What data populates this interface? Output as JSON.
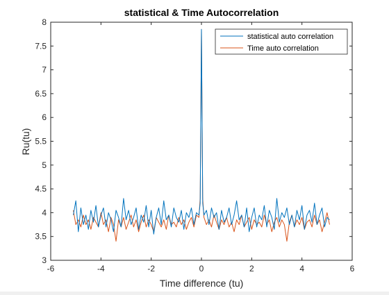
{
  "chart_data": {
    "type": "line",
    "title": "statistical & Time Autocorrelation",
    "xlabel": "Time difference (tu)",
    "ylabel": "Ru(tu)",
    "xlim": [
      -6,
      6
    ],
    "ylim": [
      3,
      8
    ],
    "xticks": [
      "-6",
      "-4",
      "-2",
      "0",
      "2",
      "4",
      "6"
    ],
    "yticks": [
      "3",
      "3.5",
      "4",
      "4.5",
      "5",
      "5.5",
      "6",
      "6.5",
      "7",
      "7.5",
      "8"
    ],
    "grid": false,
    "legend_position": "top-right",
    "series": [
      {
        "name": "statistical auto correlation",
        "color": "#0072bd",
        "x": [
          -5.1,
          -5.0,
          -4.9,
          -4.8,
          -4.7,
          -4.6,
          -4.5,
          -4.4,
          -4.3,
          -4.2,
          -4.1,
          -4.0,
          -3.9,
          -3.8,
          -3.7,
          -3.6,
          -3.5,
          -3.4,
          -3.3,
          -3.2,
          -3.1,
          -3.0,
          -2.9,
          -2.8,
          -2.7,
          -2.6,
          -2.5,
          -2.4,
          -2.3,
          -2.2,
          -2.1,
          -2.0,
          -1.9,
          -1.8,
          -1.7,
          -1.6,
          -1.5,
          -1.4,
          -1.3,
          -1.2,
          -1.1,
          -1.0,
          -0.9,
          -0.8,
          -0.7,
          -0.6,
          -0.5,
          -0.4,
          -0.3,
          -0.2,
          -0.1,
          -0.05,
          0.0,
          0.05,
          0.1,
          0.2,
          0.3,
          0.4,
          0.5,
          0.6,
          0.7,
          0.8,
          0.9,
          1.0,
          1.1,
          1.2,
          1.3,
          1.4,
          1.5,
          1.6,
          1.7,
          1.8,
          1.9,
          2.0,
          2.1,
          2.2,
          2.3,
          2.4,
          2.5,
          2.6,
          2.7,
          2.8,
          2.9,
          3.0,
          3.1,
          3.2,
          3.3,
          3.4,
          3.5,
          3.6,
          3.7,
          3.8,
          3.9,
          4.0,
          4.1,
          4.2,
          4.3,
          4.4,
          4.5,
          4.6,
          4.7,
          4.8,
          4.9,
          5.0,
          5.1
        ],
        "y": [
          3.95,
          4.25,
          3.6,
          4.1,
          3.75,
          3.95,
          3.65,
          4.05,
          3.8,
          4.15,
          3.7,
          3.95,
          4.1,
          3.7,
          4.0,
          3.85,
          3.6,
          4.05,
          3.9,
          3.7,
          4.3,
          3.85,
          4.05,
          3.75,
          3.9,
          4.1,
          3.65,
          3.95,
          3.8,
          4.15,
          3.7,
          4.05,
          3.55,
          3.9,
          4.1,
          3.75,
          4.25,
          3.85,
          3.95,
          3.7,
          4.1,
          3.9,
          3.8,
          4.05,
          3.65,
          4.0,
          3.9,
          4.1,
          3.75,
          4.0,
          3.95,
          4.2,
          7.85,
          4.2,
          3.95,
          4.05,
          3.75,
          4.1,
          3.9,
          4.0,
          3.65,
          4.05,
          3.8,
          3.9,
          4.1,
          3.75,
          3.95,
          4.25,
          3.85,
          3.95,
          3.7,
          4.1,
          3.6,
          3.9,
          4.1,
          3.7,
          3.95,
          3.85,
          4.15,
          3.7,
          4.05,
          3.9,
          3.65,
          4.3,
          3.8,
          4.0,
          3.9,
          4.1,
          3.75,
          3.95,
          3.7,
          4.05,
          3.85,
          4.15,
          3.65,
          3.95,
          4.05,
          3.8,
          4.2,
          3.75,
          3.95,
          4.1,
          3.7,
          3.9,
          3.85
        ]
      },
      {
        "name": "Time auto correlation",
        "color": "#d95319",
        "x": [
          -5.1,
          -5.0,
          -4.9,
          -4.8,
          -4.7,
          -4.6,
          -4.5,
          -4.4,
          -4.3,
          -4.2,
          -4.1,
          -4.0,
          -3.9,
          -3.8,
          -3.7,
          -3.6,
          -3.5,
          -3.4,
          -3.3,
          -3.2,
          -3.1,
          -3.0,
          -2.9,
          -2.8,
          -2.7,
          -2.6,
          -2.5,
          -2.4,
          -2.3,
          -2.2,
          -2.1,
          -2.0,
          -1.9,
          -1.8,
          -1.7,
          -1.6,
          -1.5,
          -1.4,
          -1.3,
          -1.2,
          -1.1,
          -1.0,
          -0.9,
          -0.8,
          -0.7,
          -0.6,
          -0.5,
          -0.4,
          -0.3,
          -0.2,
          -0.1,
          -0.05,
          0.0,
          0.05,
          0.1,
          0.2,
          0.3,
          0.4,
          0.5,
          0.6,
          0.7,
          0.8,
          0.9,
          1.0,
          1.1,
          1.2,
          1.3,
          1.4,
          1.5,
          1.6,
          1.7,
          1.8,
          1.9,
          2.0,
          2.1,
          2.2,
          2.3,
          2.4,
          2.5,
          2.6,
          2.7,
          2.8,
          2.9,
          3.0,
          3.1,
          3.2,
          3.3,
          3.4,
          3.5,
          3.6,
          3.7,
          3.8,
          3.9,
          4.0,
          4.1,
          4.2,
          4.3,
          4.4,
          4.5,
          4.6,
          4.7,
          4.8,
          4.9,
          5.0,
          5.1
        ],
        "y": [
          4.05,
          3.75,
          3.85,
          3.7,
          3.95,
          3.75,
          3.85,
          3.65,
          3.9,
          3.8,
          3.7,
          4.0,
          3.75,
          3.85,
          3.6,
          3.9,
          3.75,
          3.4,
          3.85,
          3.7,
          3.9,
          3.65,
          3.8,
          3.95,
          3.7,
          3.85,
          3.6,
          3.8,
          3.95,
          3.7,
          3.85,
          3.75,
          3.6,
          3.9,
          3.8,
          3.7,
          3.85,
          3.65,
          3.95,
          3.75,
          3.8,
          3.7,
          3.9,
          3.75,
          3.85,
          3.65,
          3.8,
          3.9,
          3.7,
          3.95,
          3.9,
          4.3,
          7.85,
          4.3,
          3.9,
          3.75,
          3.85,
          3.7,
          3.95,
          3.8,
          3.65,
          3.85,
          3.75,
          3.9,
          3.7,
          3.8,
          3.6,
          3.85,
          3.75,
          3.95,
          3.7,
          3.8,
          3.9,
          3.65,
          3.85,
          3.75,
          3.8,
          3.7,
          3.95,
          3.75,
          3.85,
          3.6,
          3.8,
          3.9,
          3.7,
          3.85,
          3.75,
          3.4,
          3.8,
          3.95,
          3.7,
          3.85,
          3.75,
          3.9,
          3.65,
          3.8,
          3.85,
          3.7,
          3.95,
          3.75,
          3.85,
          3.6,
          3.8,
          4.0,
          3.75
        ]
      }
    ]
  }
}
